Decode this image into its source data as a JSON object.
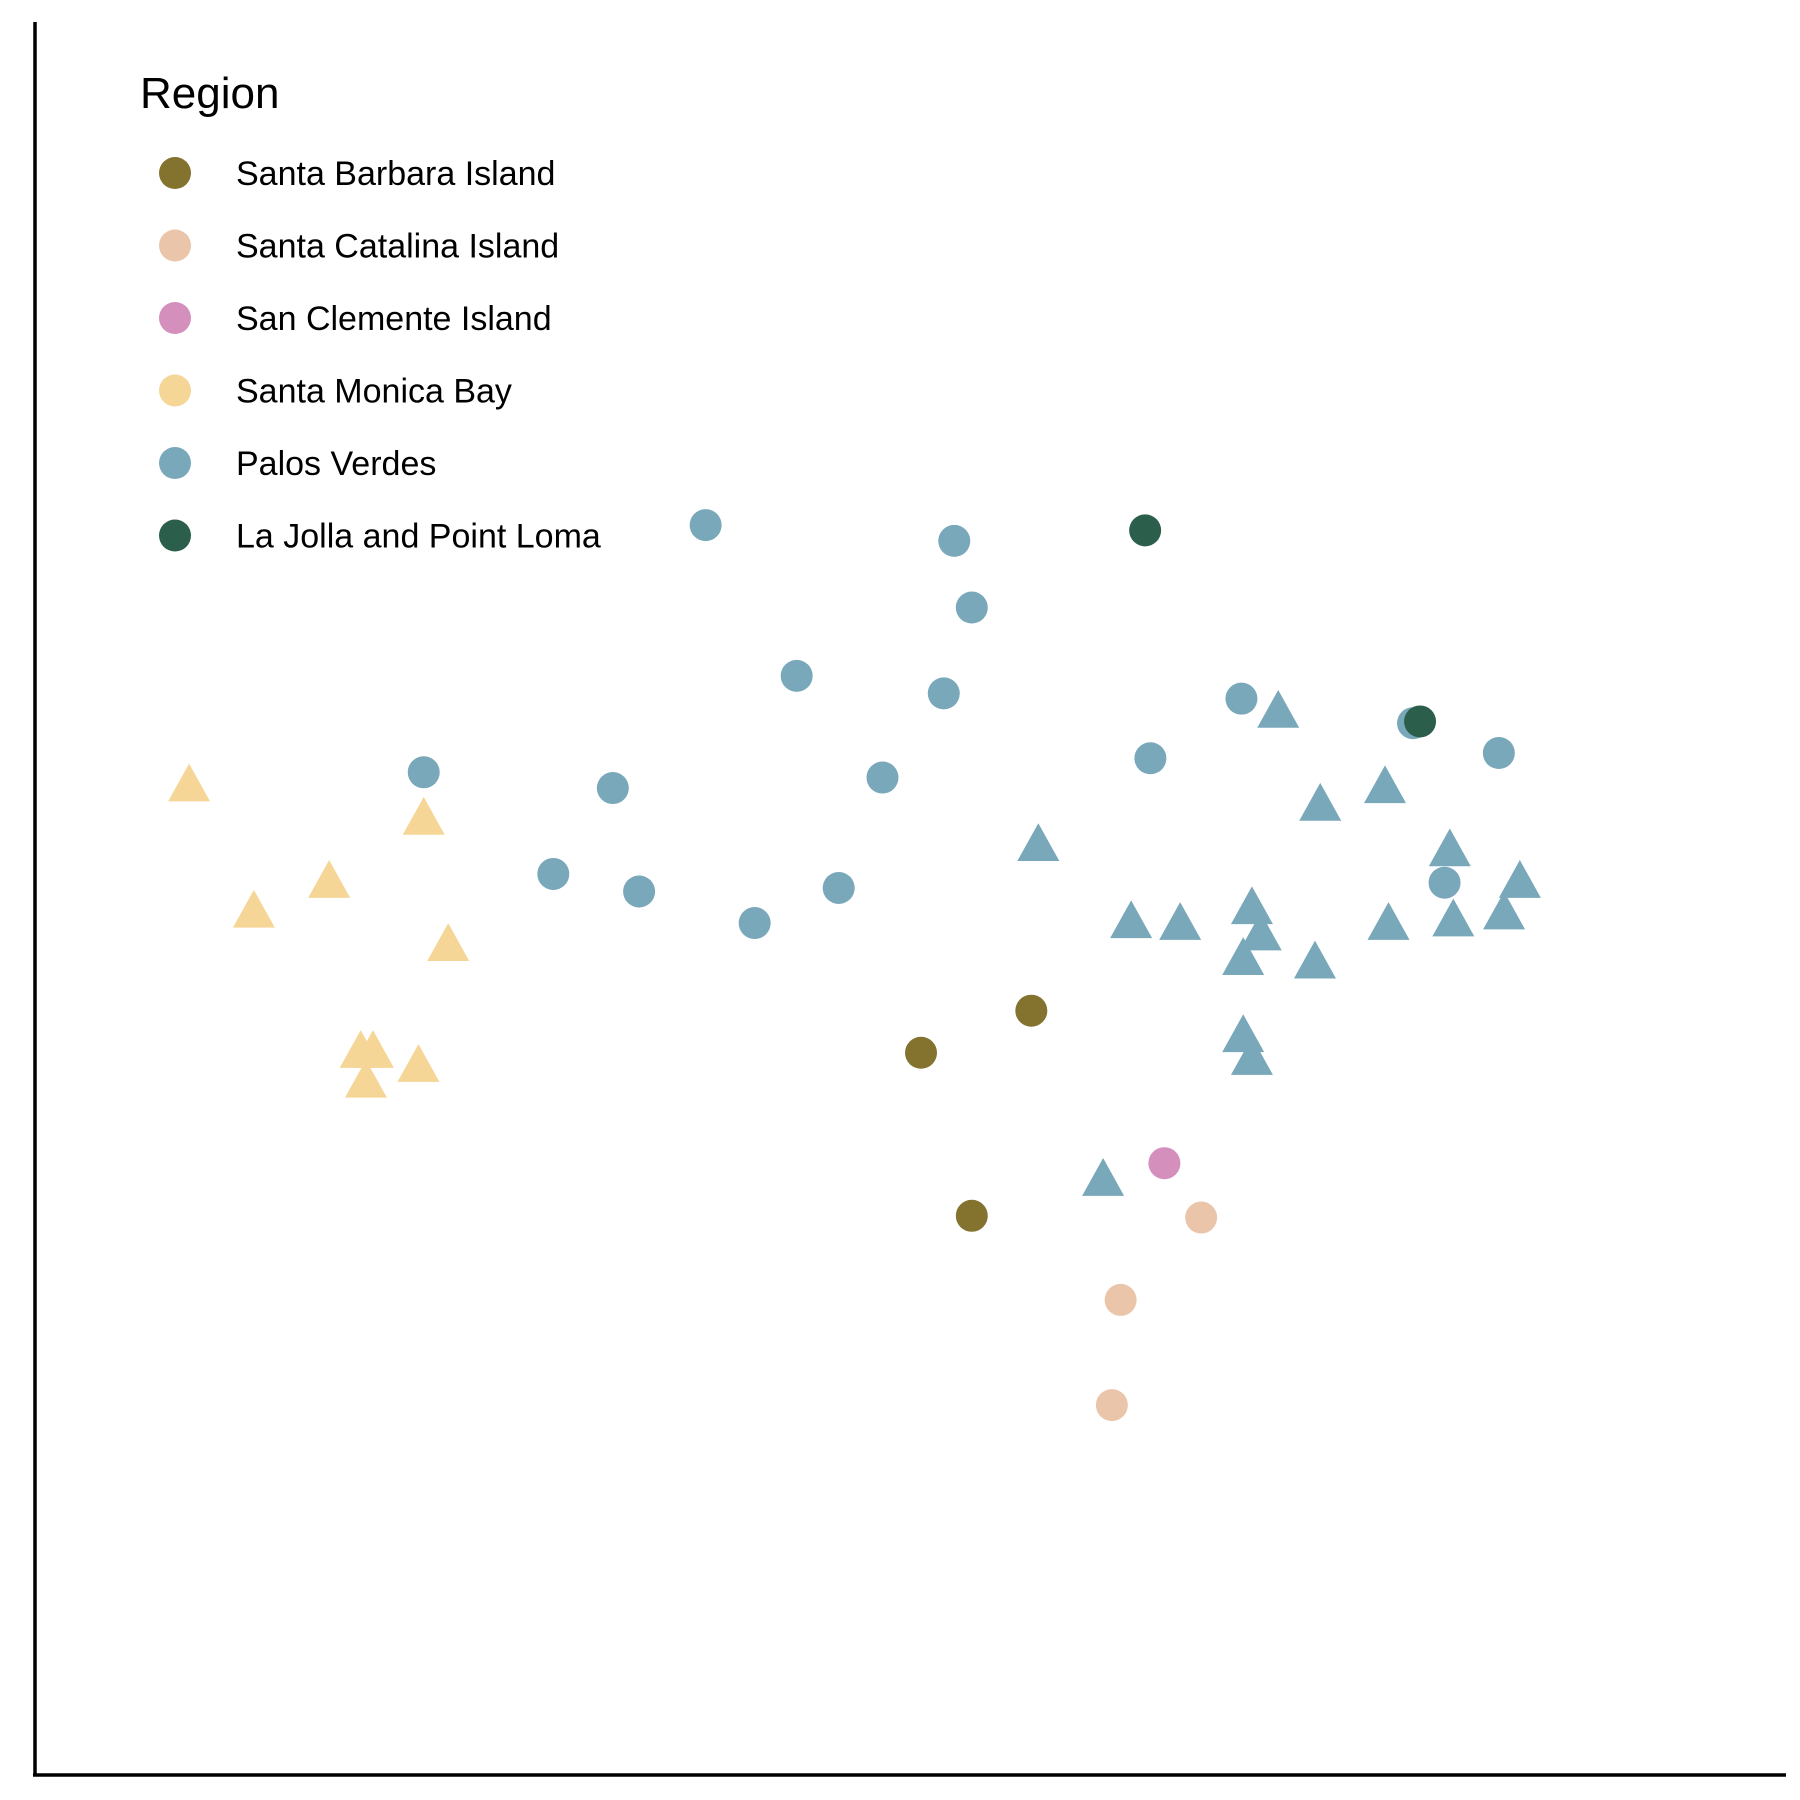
{
  "chart_data": {
    "type": "scatter",
    "title": "",
    "xlabel": "",
    "ylabel": "",
    "xlim": [
      0,
      100
    ],
    "ylim": [
      0,
      100
    ],
    "grid": false,
    "legend_placement": "top-left",
    "legend": {
      "title": "Region",
      "entries": [
        {
          "name": "Santa Barbara Island",
          "color": "#84722F"
        },
        {
          "name": "Santa Catalina Island",
          "color": "#EBC5AA"
        },
        {
          "name": "San Clemente Island",
          "color": "#D48FBC"
        },
        {
          "name": "Santa Monica Bay",
          "color": "#F6D697"
        },
        {
          "name": "Palos Verdes",
          "color": "#79A8BA"
        },
        {
          "name": "La Jolla and Point Loma",
          "color": "#2B5F4C"
        }
      ]
    },
    "series": [
      {
        "name": "Santa Barbara Island",
        "color": "#84722F",
        "shape": "circle",
        "points": [
          {
            "x": 56.9,
            "y": 43.6
          },
          {
            "x": 50.6,
            "y": 41.2
          },
          {
            "x": 53.5,
            "y": 31.9
          }
        ]
      },
      {
        "name": "Santa Catalina Island",
        "color": "#EBC5AA",
        "shape": "circle",
        "points": [
          {
            "x": 66.6,
            "y": 31.8
          },
          {
            "x": 62.0,
            "y": 27.1
          },
          {
            "x": 61.5,
            "y": 21.1
          }
        ]
      },
      {
        "name": "San Clemente Island",
        "color": "#D48FBC",
        "shape": "circle",
        "points": [
          {
            "x": 64.5,
            "y": 34.9
          }
        ]
      },
      {
        "name": "Santa Monica Bay",
        "color": "#F6D697",
        "shape": "triangle",
        "points": [
          {
            "x": 8.8,
            "y": 56.4
          },
          {
            "x": 22.2,
            "y": 54.5
          },
          {
            "x": 16.8,
            "y": 50.9
          },
          {
            "x": 12.5,
            "y": 49.2
          },
          {
            "x": 23.6,
            "y": 47.3
          },
          {
            "x": 18.6,
            "y": 41.2
          },
          {
            "x": 19.3,
            "y": 41.2
          },
          {
            "x": 18.9,
            "y": 39.5
          },
          {
            "x": 21.9,
            "y": 40.4
          }
        ]
      },
      {
        "name": "Palos Verdes",
        "color": "#79A8BA",
        "shape": "circle",
        "points": [
          {
            "x": 38.3,
            "y": 71.3
          },
          {
            "x": 52.5,
            "y": 70.4
          },
          {
            "x": 53.5,
            "y": 66.6
          },
          {
            "x": 43.5,
            "y": 62.7
          },
          {
            "x": 51.9,
            "y": 61.7
          },
          {
            "x": 68.9,
            "y": 61.4
          },
          {
            "x": 78.7,
            "y": 60.0
          },
          {
            "x": 83.6,
            "y": 58.3
          },
          {
            "x": 63.7,
            "y": 58.0
          },
          {
            "x": 48.4,
            "y": 56.9
          },
          {
            "x": 22.2,
            "y": 57.2
          },
          {
            "x": 33.0,
            "y": 56.3
          },
          {
            "x": 29.6,
            "y": 51.4
          },
          {
            "x": 34.5,
            "y": 50.4
          },
          {
            "x": 45.9,
            "y": 50.6
          },
          {
            "x": 41.1,
            "y": 48.6
          },
          {
            "x": 80.5,
            "y": 50.9
          }
        ]
      },
      {
        "name": "Palos Verdes",
        "color": "#79A8BA",
        "shape": "triangle",
        "points": [
          {
            "x": 71.0,
            "y": 60.6
          },
          {
            "x": 57.3,
            "y": 53.0
          },
          {
            "x": 73.4,
            "y": 55.3
          },
          {
            "x": 77.1,
            "y": 56.3
          },
          {
            "x": 80.8,
            "y": 52.7
          },
          {
            "x": 84.8,
            "y": 50.9
          },
          {
            "x": 62.6,
            "y": 48.6
          },
          {
            "x": 65.4,
            "y": 48.5
          },
          {
            "x": 69.5,
            "y": 49.4
          },
          {
            "x": 70.0,
            "y": 47.9
          },
          {
            "x": 77.3,
            "y": 48.5
          },
          {
            "x": 81.0,
            "y": 48.7
          },
          {
            "x": 83.9,
            "y": 49.1
          },
          {
            "x": 69.0,
            "y": 46.5
          },
          {
            "x": 73.1,
            "y": 46.3
          },
          {
            "x": 69.0,
            "y": 42.1
          },
          {
            "x": 69.5,
            "y": 40.8
          },
          {
            "x": 61.0,
            "y": 33.9
          }
        ]
      },
      {
        "name": "La Jolla and Point Loma",
        "color": "#2B5F4C",
        "shape": "circle",
        "points": [
          {
            "x": 63.4,
            "y": 71.0
          },
          {
            "x": 79.1,
            "y": 60.1
          }
        ]
      }
    ]
  }
}
